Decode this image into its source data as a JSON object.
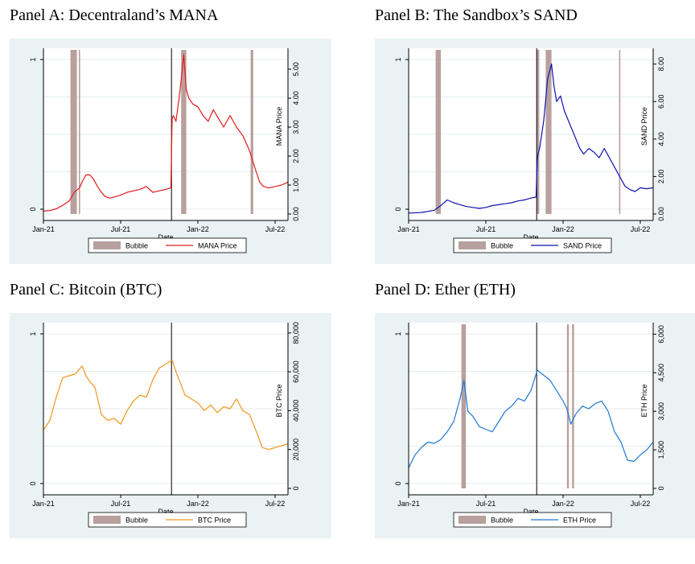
{
  "chart_data": [
    {
      "type": "line",
      "title": "Panel A: Decentraland’s MANA",
      "xlabel": "Date",
      "ylabel_left_ticks": [
        "0",
        "1"
      ],
      "ylabel_right": "MANA Price",
      "x_ticks": [
        "Jan-21",
        "Jul-21",
        "Jan-22",
        "Jul-22"
      ],
      "x_range": [
        0,
        19
      ],
      "y_right_ticks": [
        "0.00",
        "1.00",
        "2.00",
        "3.00",
        "4.00",
        "5.00"
      ],
      "y_right_range": [
        0,
        5.5
      ],
      "series": [
        {
          "name": "MANA Price",
          "color": "#e31a1c",
          "x": [
            0,
            0.5,
            1,
            1.5,
            2,
            2.4,
            2.8,
            3.0,
            3.3,
            3.6,
            3.9,
            4.2,
            4.5,
            4.8,
            5.2,
            5.6,
            6,
            6.5,
            7,
            7.5,
            8,
            8.5,
            9,
            9.5,
            9.9,
            10.0,
            10.1,
            10.3,
            10.6,
            10.9,
            11.1,
            11.3,
            11.6,
            12,
            12.4,
            12.8,
            13.2,
            13.6,
            14,
            14.5,
            15,
            15.5,
            16,
            16.5,
            16.8,
            17.1,
            17.5,
            18,
            18.5,
            19
          ],
          "values": [
            0.1,
            0.12,
            0.18,
            0.3,
            0.45,
            0.75,
            0.9,
            1.1,
            1.35,
            1.35,
            1.2,
            0.95,
            0.75,
            0.6,
            0.55,
            0.6,
            0.65,
            0.75,
            0.8,
            0.85,
            0.95,
            0.75,
            0.8,
            0.85,
            0.9,
            3.3,
            3.4,
            3.2,
            4.2,
            5.5,
            4.3,
            4.0,
            3.8,
            3.7,
            3.4,
            3.2,
            3.6,
            3.3,
            3.0,
            3.4,
            3.0,
            2.7,
            2.2,
            1.5,
            1.1,
            0.95,
            0.9,
            0.95,
            1.0,
            1.1
          ]
        },
        {
          "name": "Bubble",
          "color": "#b7a09d",
          "bands": [
            [
              2.1,
              2.6
            ],
            [
              2.75,
              2.85
            ],
            [
              10.7,
              11.1
            ],
            [
              16.1,
              16.3
            ]
          ]
        }
      ],
      "vline": 9.95,
      "legend": [
        "Bubble",
        "MANA Price"
      ],
      "legend_position": "bottom"
    },
    {
      "type": "line",
      "title": "Panel B: The Sandbox’s SAND",
      "xlabel": "Date",
      "ylabel_left_ticks": [
        "0",
        "1"
      ],
      "ylabel_right": "SAND Price",
      "x_ticks": [
        "Jan-21",
        "Jul-21",
        "Jan-22",
        "Jul-22"
      ],
      "x_range": [
        0,
        19
      ],
      "y_right_ticks": [
        "0.00",
        "2.00",
        "4.00",
        "6.00",
        "8.00"
      ],
      "y_right_range": [
        0,
        8.5
      ],
      "series": [
        {
          "name": "SAND Price",
          "color": "#1010b0",
          "x": [
            0,
            1,
            2,
            2.5,
            3,
            3.5,
            4,
            4.5,
            5,
            5.5,
            6,
            6.5,
            7,
            7.5,
            8,
            8.5,
            9,
            9.5,
            9.9,
            10.0,
            10.2,
            10.5,
            10.8,
            11.1,
            11.3,
            11.5,
            11.8,
            12.1,
            12.4,
            12.7,
            13,
            13.3,
            13.6,
            14,
            14.4,
            14.8,
            15.2,
            15.6,
            16,
            16.4,
            16.8,
            17.2,
            17.6,
            18,
            18.5,
            19
          ],
          "values": [
            0.05,
            0.08,
            0.2,
            0.45,
            0.75,
            0.6,
            0.5,
            0.4,
            0.35,
            0.3,
            0.35,
            0.45,
            0.5,
            0.55,
            0.6,
            0.7,
            0.75,
            0.85,
            0.9,
            3.0,
            3.6,
            5.0,
            7.2,
            8.0,
            6.8,
            6.0,
            6.3,
            5.5,
            5.0,
            4.5,
            4.0,
            3.5,
            3.2,
            3.5,
            3.3,
            3.0,
            3.5,
            3.0,
            2.5,
            2.0,
            1.5,
            1.3,
            1.2,
            1.4,
            1.35,
            1.4
          ]
        },
        {
          "name": "Bubble",
          "color": "#b7a09d",
          "bands": [
            [
              2.1,
              2.5
            ],
            [
              9.95,
              10.15
            ],
            [
              10.65,
              11.1
            ],
            [
              16.35,
              16.45
            ]
          ]
        }
      ],
      "vline": 9.95,
      "legend": [
        "Bubble",
        "SAND Price"
      ],
      "legend_position": "bottom"
    },
    {
      "type": "line",
      "title": "Panel C: Bitcoin (BTC)",
      "xlabel": "Date",
      "ylabel_left_ticks": [
        "0",
        "1"
      ],
      "ylabel_right": "BTC Price",
      "x_ticks": [
        "Jan-21",
        "Jul-21",
        "Jan-22",
        "Jul-22"
      ],
      "x_range": [
        0,
        19
      ],
      "y_right_ticks": [
        "0",
        "20,000",
        "40,000",
        "60,000",
        "80,000"
      ],
      "y_right_range": [
        0,
        82000
      ],
      "series": [
        {
          "name": "BTC Price",
          "color": "#f0961e",
          "x": [
            0,
            0.5,
            1,
            1.5,
            2,
            2.5,
            3,
            3.3,
            3.6,
            4,
            4.5,
            5,
            5.5,
            6,
            6.5,
            7,
            7.5,
            8,
            8.5,
            9,
            9.5,
            10,
            10.3,
            10.6,
            11,
            11.5,
            12,
            12.5,
            13,
            13.5,
            14,
            14.5,
            15,
            15.5,
            16,
            16.5,
            17,
            17.5,
            18,
            18.5,
            19
          ],
          "values": [
            30000,
            35000,
            47000,
            57000,
            58000,
            59000,
            63000,
            58000,
            55000,
            52000,
            38000,
            35000,
            36000,
            33000,
            40000,
            45000,
            48000,
            47000,
            56000,
            62000,
            64000,
            66000,
            60000,
            55000,
            48000,
            46000,
            44000,
            40000,
            43000,
            39000,
            42000,
            41000,
            46000,
            40000,
            38000,
            30000,
            21000,
            20000,
            21000,
            22000,
            23000
          ]
        }
      ],
      "vline": 9.95,
      "legend": [
        "Bubble",
        "BTC Price"
      ],
      "legend_position": "bottom"
    },
    {
      "type": "line",
      "title": "Panel D: Ether (ETH)",
      "xlabel": "Date",
      "ylabel_left_ticks": [
        "0",
        "1"
      ],
      "ylabel_right": "ETH Price",
      "x_ticks": [
        "Jan-21",
        "Jul-21",
        "Jan-22",
        "Jul-22"
      ],
      "x_range": [
        0,
        19
      ],
      "y_right_ticks": [
        "0",
        "1,500",
        "3,000",
        "4,500",
        "6,000"
      ],
      "y_right_range": [
        0,
        6200
      ],
      "series": [
        {
          "name": "ETH Price",
          "color": "#1f77d4",
          "x": [
            0,
            0.5,
            1,
            1.5,
            2,
            2.5,
            3,
            3.5,
            4,
            4.3,
            4.6,
            5,
            5.5,
            6,
            6.5,
            7,
            7.5,
            8,
            8.5,
            9,
            9.5,
            10,
            10.5,
            11,
            11.5,
            12,
            12.3,
            12.6,
            13,
            13.5,
            14,
            14.5,
            15,
            15.5,
            16,
            16.5,
            17,
            17.5,
            18,
            18.5,
            19
          ],
          "values": [
            800,
            1300,
            1600,
            1800,
            1750,
            1900,
            2200,
            2600,
            3500,
            4200,
            3000,
            2800,
            2400,
            2300,
            2200,
            2600,
            3000,
            3200,
            3500,
            3400,
            3800,
            4600,
            4400,
            4200,
            3800,
            3400,
            3100,
            2500,
            2900,
            3200,
            3100,
            3300,
            3400,
            3000,
            2200,
            1800,
            1100,
            1050,
            1300,
            1500,
            1800
          ]
        },
        {
          "name": "Bubble",
          "color": "#b7a09d",
          "bands": [
            [
              4.1,
              4.45
            ],
            [
              12.3,
              12.45
            ],
            [
              12.7,
              12.85
            ]
          ]
        }
      ],
      "vline": 9.95,
      "legend": [
        "Bubble",
        "ETH Price"
      ],
      "legend_position": "bottom"
    }
  ]
}
